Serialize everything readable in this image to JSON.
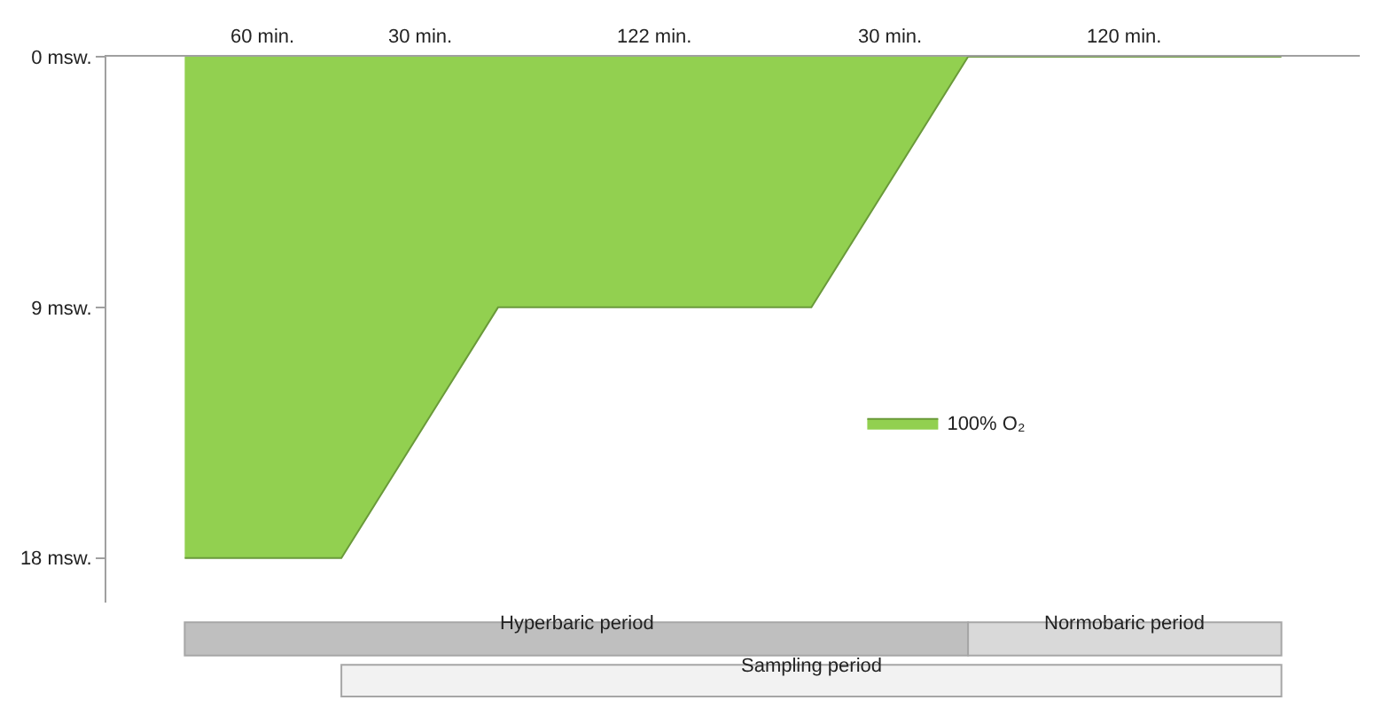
{
  "chart_data": {
    "type": "area",
    "categories": [
      null,
      null,
      null,
      null,
      null,
      null,
      null,
      null
    ],
    "series": [
      {
        "name": "100% O₂",
        "color": "#92d050",
        "values": [
          18,
          18,
          9,
          9,
          9,
          0,
          0,
          0
        ]
      }
    ],
    "ylim": [
      19.6,
      0
    ],
    "yticks": [
      {
        "value": 0,
        "label": "0 msw."
      },
      {
        "value": 9,
        "label": "9 msw."
      },
      {
        "value": 18,
        "label": "18 msw."
      }
    ],
    "tick_labels": "y",
    "legend": "right",
    "annotations": [
      "60 min.",
      "30 min.",
      "122 min.",
      "30 min.",
      "120 min.",
      "Hyperbaric period",
      "Normobaric period",
      "Sampling period"
    ]
  }
}
